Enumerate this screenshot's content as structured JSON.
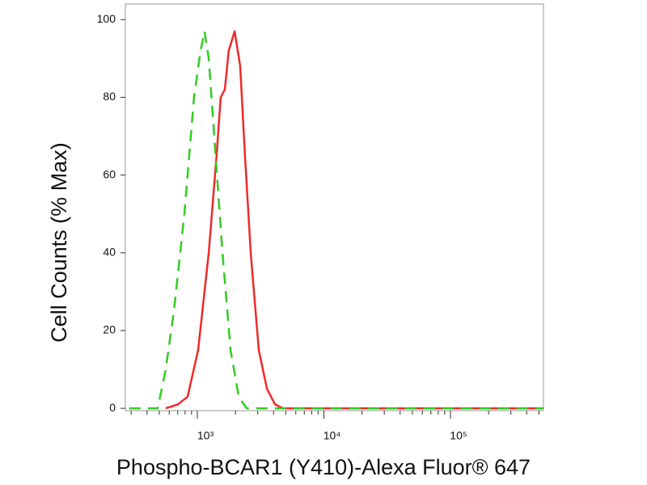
{
  "chart_data": {
    "type": "line",
    "x_label": "Phospho-BCAR1 (Y410)-Alexa Fluor® 647",
    "y_label": "Cell Counts (% Max)",
    "xscale": "log",
    "xlim": [
      270,
      543000
    ],
    "ylim": [
      -0.6,
      104
    ],
    "xticks": [
      {
        "value": 1000,
        "label": "10³"
      },
      {
        "value": 10000,
        "label": "10⁴"
      },
      {
        "value": 100000,
        "label": "10⁵"
      }
    ],
    "xminor_ticks": [
      300,
      400,
      500,
      600,
      700,
      800,
      900,
      2000,
      3000,
      4000,
      5000,
      6000,
      7000,
      8000,
      9000,
      20000,
      30000,
      40000,
      50000,
      60000,
      70000,
      80000,
      90000,
      200000,
      300000,
      400000,
      500000
    ],
    "yticks": [
      0,
      20,
      40,
      60,
      80,
      100
    ],
    "series": [
      {
        "color": "#ee2a2a",
        "style": "solid",
        "x": [
          563,
          703,
          838,
          1015,
          1230,
          1420,
          1530,
          1650,
          1770,
          1970,
          2180,
          2380,
          2640,
          3060,
          3550,
          4110,
          4760,
          540000
        ],
        "values": [
          0,
          1,
          3,
          15,
          40,
          65,
          80,
          82,
          92,
          97,
          88,
          65,
          40,
          15,
          5,
          1,
          0,
          0
        ]
      },
      {
        "color": "#33cc22",
        "style": "dashed",
        "x": [
          290,
          390,
          486,
          563,
          653,
          790,
          942,
          1060,
          1140,
          1230,
          1360,
          1580,
          1830,
          2120,
          2450,
          540000
        ],
        "values": [
          0,
          0,
          0,
          10,
          25,
          50,
          80,
          92,
          97,
          90,
          70,
          40,
          15,
          3,
          0,
          0
        ]
      }
    ]
  }
}
